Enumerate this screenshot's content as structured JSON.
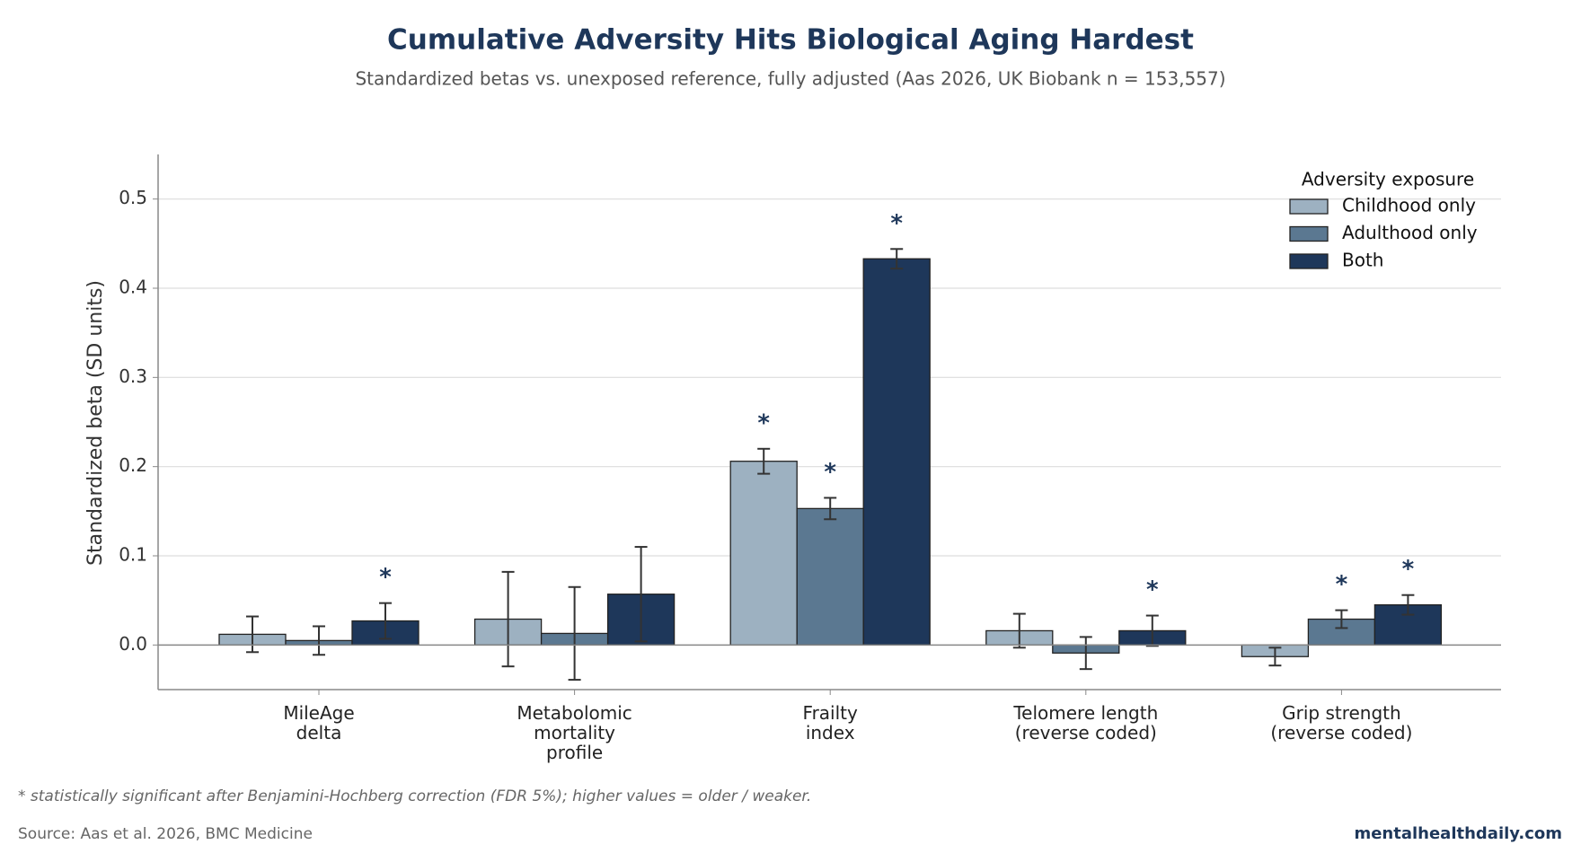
{
  "chart_data": {
    "type": "bar",
    "title": "Cumulative Adversity Hits Biological Aging Hardest",
    "subtitle": "Standardized betas vs. unexposed reference, fully adjusted (Aas 2026, UK Biobank n = 153,557)",
    "y_label": "Standardized beta (SD units)",
    "categories": [
      "MileAge\ndelta",
      "Metabolomic\nmortality\nprofile",
      "Frailty\nindex",
      "Telomere length\n(reverse coded)",
      "Grip strength\n(reverse coded)"
    ],
    "series": [
      {
        "name": "Childhood only",
        "color": "#9db1c1",
        "values": [
          0.012,
          0.029,
          0.206,
          0.016,
          -0.013
        ],
        "errors": [
          0.02,
          0.053,
          0.014,
          0.019,
          0.01
        ],
        "significant": [
          false,
          false,
          true,
          false,
          false
        ]
      },
      {
        "name": "Adulthood only",
        "color": "#5b7891",
        "values": [
          0.005,
          0.013,
          0.153,
          -0.009,
          0.029
        ],
        "errors": [
          0.016,
          0.052,
          0.012,
          0.018,
          0.01
        ],
        "significant": [
          false,
          false,
          true,
          false,
          true
        ]
      },
      {
        "name": "Both",
        "color": "#1e375a",
        "values": [
          0.027,
          0.057,
          0.433,
          0.016,
          0.045
        ],
        "errors": [
          0.02,
          0.053,
          0.011,
          0.017,
          0.011
        ],
        "significant": [
          true,
          false,
          true,
          true,
          true
        ]
      }
    ],
    "significance_marker": "*",
    "legend_title": "Adversity exposure",
    "legend_position": "upper right",
    "ylim": [
      -0.05,
      0.55
    ],
    "yticks": [
      {
        "value": 0,
        "label": "0.0"
      },
      0.1,
      0.2,
      0.3,
      0.4,
      0.5
    ],
    "grid": true,
    "footnote": "* statistically significant after Benjamini-Hochberg correction (FDR 5%); higher values = older / weaker.",
    "source": "Source: Aas et al. 2026, BMC Medicine",
    "brand": "mentalhealthdaily.com"
  }
}
